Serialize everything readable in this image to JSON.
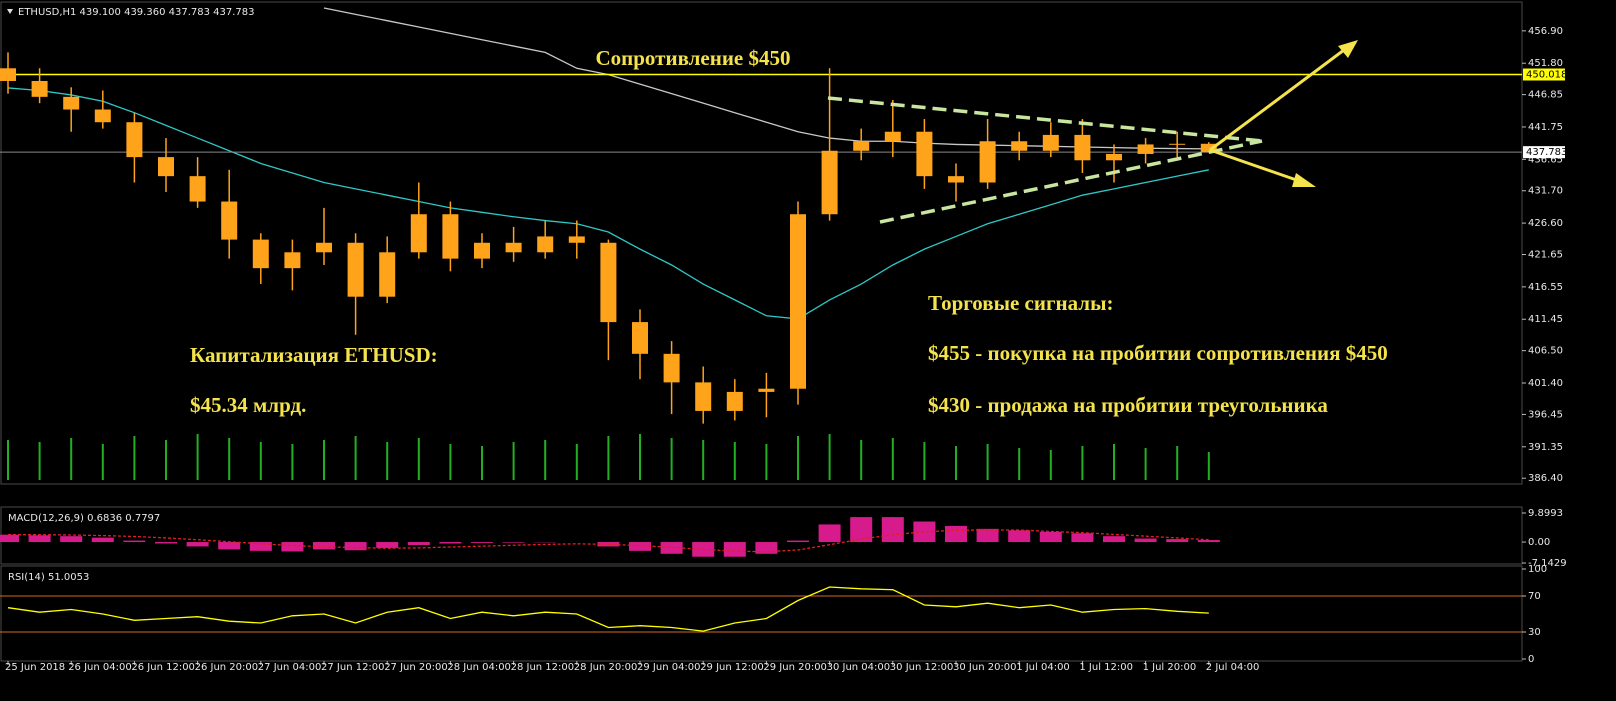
{
  "chart_data": [
    {
      "type": "candlestick",
      "header": "ETHUSD,H1  439.100 439.360 437.783 437.783",
      "categories": [
        "25 Jun 2018",
        null,
        "26 Jun 04:00",
        null,
        "26 Jun 12:00",
        null,
        "26 Jun 20:00",
        null,
        "27 Jun 04:00",
        null,
        "27 Jun 12:00",
        null,
        "27 Jun 20:00",
        null,
        "28 Jun 04:00",
        null,
        "28 Jun 12:00",
        null,
        "28 Jun 20:00",
        null,
        "29 Jun 04:00",
        null,
        "29 Jun 12:00",
        null,
        "29 Jun 20:00",
        null,
        "30 Jun 04:00",
        null,
        "30 Jun 12:00",
        null,
        "30 Jun 20:00",
        null,
        "1 Jul 04:00",
        null,
        "1 Jul 12:00",
        null,
        "1 Jul 20:00",
        null,
        "2 Jul 04:00"
      ],
      "open": [
        451,
        449,
        446.5,
        444.5,
        442.5,
        437,
        434,
        430,
        424,
        419.5,
        422,
        423.5,
        415,
        422,
        428,
        421,
        423.5,
        422,
        424.5,
        423.5,
        411,
        406,
        401.5,
        397,
        400,
        400.5,
        428,
        438,
        439.5,
        441,
        434,
        433,
        439.5,
        438,
        440.5,
        436.5,
        437.5,
        439,
        439.1
      ],
      "high": [
        453.5,
        451,
        448,
        447.5,
        444,
        440,
        437,
        435,
        425,
        424,
        429,
        425,
        424.5,
        433,
        430,
        425,
        426,
        427,
        427,
        424,
        413,
        408,
        404,
        402,
        403,
        430,
        451,
        441.5,
        446,
        443,
        436,
        443,
        441,
        442.5,
        443,
        439,
        440,
        441,
        439.36
      ],
      "low": [
        447,
        445.5,
        441,
        441.5,
        433,
        431.5,
        429,
        421,
        417,
        416,
        420,
        409,
        414,
        421,
        419,
        419.5,
        420.5,
        421,
        421,
        405,
        402,
        396.5,
        395,
        395.5,
        396,
        398,
        427,
        436.5,
        437,
        432,
        430,
        432,
        436.5,
        437,
        434.5,
        433,
        436,
        437,
        437.783
      ],
      "close": [
        449,
        446.5,
        444.5,
        442.5,
        437,
        434,
        430,
        424,
        419.5,
        422,
        423.5,
        415,
        422,
        428,
        421,
        423.5,
        422,
        424.5,
        423.5,
        411,
        406,
        401.5,
        397,
        400,
        400.5,
        428,
        438,
        439.5,
        441,
        434,
        433,
        439.5,
        438,
        440.5,
        436.5,
        437.5,
        439,
        439.1,
        437.783
      ],
      "color": "#ffa31a",
      "lines": [
        {
          "color": "#c8c8c8",
          "values": [
            null,
            null,
            null,
            null,
            null,
            null,
            null,
            null,
            null,
            null,
            460.5,
            459.5,
            458.5,
            457.5,
            456.5,
            455.5,
            454.5,
            453.5,
            451,
            450,
            448.5,
            447,
            445.5,
            444,
            442.5,
            441,
            440,
            439.5,
            439.5,
            439.2,
            439,
            438.9,
            438.8,
            438.7,
            438.6,
            438.5,
            438.4,
            438.35,
            438.3
          ]
        },
        {
          "color": "#2fc7c7",
          "values": [
            447.9,
            447.5,
            446.8,
            445.8,
            444,
            442,
            440,
            438,
            436,
            434.5,
            433,
            432,
            431,
            430,
            429,
            428.3,
            427.6,
            427,
            426.5,
            425.2,
            422.5,
            420,
            417,
            414.5,
            412,
            411.5,
            414.5,
            417,
            420,
            422.5,
            424.5,
            426.5,
            428,
            429.5,
            431,
            432,
            433,
            434,
            435
          ]
        }
      ],
      "volumes": {
        "color": "#22b022",
        "values": [
          40,
          38,
          42,
          36,
          44,
          40,
          46,
          42,
          38,
          36,
          40,
          44,
          38,
          42,
          36,
          34,
          38,
          40,
          36,
          44,
          46,
          42,
          40,
          38,
          36,
          44,
          46,
          40,
          42,
          38,
          34,
          36,
          32,
          30,
          34,
          36,
          32,
          34,
          28
        ]
      },
      "hlines": [
        {
          "value": 450.018,
          "color": "#ffff00"
        },
        {
          "value": 437.783,
          "color": "#8a8a8a"
        }
      ],
      "annotations": [
        "Сопротивление $450",
        "Капитализация ETHUSD:",
        "$45.34 млрд.",
        "Торговые сигналы:",
        "$455 - покупка на пробитии сопротивления $450",
        "$430 - продажа на пробитии треугольника"
      ],
      "ylim": [
        385.8,
        460.5
      ],
      "yticks": [
        {
          "value": 456.9,
          "label": "456.90"
        },
        {
          "value": 451.8,
          "label": "451.80"
        },
        {
          "value": 446.85,
          "label": "446.85"
        },
        {
          "value": 441.75,
          "label": "441.75"
        },
        {
          "value": 436.65,
          "label": "436.65"
        },
        {
          "value": 431.7,
          "label": "431.70"
        },
        {
          "value": 426.6,
          "label": "426.60"
        },
        {
          "value": 421.65,
          "label": "421.65"
        },
        {
          "value": 416.55,
          "label": "416.55"
        },
        {
          "value": 411.45,
          "label": "411.45"
        },
        {
          "value": 406.5,
          "label": "406.50"
        },
        {
          "value": 401.4,
          "label": "401.40"
        },
        {
          "value": 396.45,
          "label": "396.45"
        },
        {
          "value": 391.35,
          "label": "391.35"
        },
        {
          "value": 386.4,
          "label": "386.40"
        }
      ]
    },
    {
      "type": "bar",
      "title": "MACD(12,26,9) 0.6836 0.7797",
      "values": [
        2.5,
        2.3,
        2,
        1.5,
        0.5,
        -0.5,
        -1.5,
        -2.5,
        -3,
        -3.2,
        -2.5,
        -2.8,
        -2,
        -1,
        -0.5,
        -0.3,
        -0.2,
        -0.1,
        0,
        -1.5,
        -3,
        -4,
        -5,
        -5,
        -4,
        0.5,
        6,
        8.5,
        8.5,
        7,
        5.5,
        4.5,
        4,
        3.5,
        3,
        2,
        1.2,
        1,
        0.6836
      ],
      "color": "#d81b8c",
      "signal": {
        "color": "#e02020",
        "values": [
          2.5,
          2.5,
          2.4,
          2.2,
          1.9,
          1.4,
          0.8,
          0.1,
          -0.6,
          -1.2,
          -1.6,
          -1.9,
          -2.1,
          -2,
          -1.7,
          -1.4,
          -1.1,
          -0.8,
          -0.6,
          -0.8,
          -1.2,
          -1.8,
          -2.5,
          -3.1,
          -3.3,
          -2.7,
          -0.9,
          1,
          2.5,
          3.5,
          4,
          4.1,
          4.1,
          3.6,
          3.2,
          2.6,
          2,
          1.4,
          0.7797
        ]
      },
      "ylim": [
        -7.1429,
        9.8993
      ],
      "yticks": [
        9.8993,
        {
          "value": 0,
          "label": "0.00"
        },
        -7.1429
      ]
    },
    {
      "type": "line",
      "title": "RSI(14) 51.0053",
      "values": [
        57,
        52,
        55,
        50,
        43,
        45,
        47,
        42,
        40,
        48,
        50,
        40,
        52,
        57,
        45,
        52,
        48,
        52,
        50,
        35,
        37,
        35,
        31,
        40,
        45,
        65,
        80,
        78,
        77,
        60,
        58,
        62,
        57,
        60,
        52,
        55,
        56,
        53,
        51.0053
      ],
      "color": "#ffff00",
      "levels": {
        "color": "#d2691e",
        "values": [
          70,
          30
        ]
      },
      "ylim": [
        0,
        100
      ],
      "yticks": [
        100,
        70,
        30,
        0
      ]
    }
  ]
}
